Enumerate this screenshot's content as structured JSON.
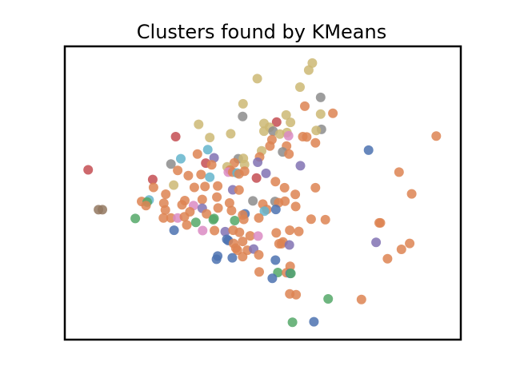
{
  "chart_data": {
    "type": "scatter",
    "title": "Clusters found by KMeans",
    "xlabel": "",
    "ylabel": "",
    "xlim": [
      0,
      1
    ],
    "ylim": [
      0,
      1
    ],
    "axes_visible": false,
    "grid": false,
    "legend": "none",
    "palette": {
      "blue": "#4c72b0",
      "orange": "#dd8452",
      "green": "#55a868",
      "red": "#c44e52",
      "purple": "#8172b3",
      "brown": "#937860",
      "pink": "#da8bc3",
      "gray": "#8c8c8c",
      "olive": "#ccb974",
      "cyan": "#64b5cd"
    },
    "points": [
      {
        "x": 0.625,
        "y": 0.943,
        "c": "olive"
      },
      {
        "x": 0.616,
        "y": 0.919,
        "c": "olive"
      },
      {
        "x": 0.594,
        "y": 0.861,
        "c": "olive"
      },
      {
        "x": 0.486,
        "y": 0.89,
        "c": "olive"
      },
      {
        "x": 0.45,
        "y": 0.804,
        "c": "olive"
      },
      {
        "x": 0.646,
        "y": 0.826,
        "c": "gray"
      },
      {
        "x": 0.606,
        "y": 0.796,
        "c": "orange"
      },
      {
        "x": 0.677,
        "y": 0.772,
        "c": "orange"
      },
      {
        "x": 0.646,
        "y": 0.769,
        "c": "olive"
      },
      {
        "x": 0.559,
        "y": 0.766,
        "c": "olive"
      },
      {
        "x": 0.535,
        "y": 0.742,
        "c": "red"
      },
      {
        "x": 0.57,
        "y": 0.741,
        "c": "olive"
      },
      {
        "x": 0.449,
        "y": 0.761,
        "c": "gray"
      },
      {
        "x": 0.503,
        "y": 0.737,
        "c": "olive"
      },
      {
        "x": 0.517,
        "y": 0.724,
        "c": "olive"
      },
      {
        "x": 0.648,
        "y": 0.717,
        "c": "gray"
      },
      {
        "x": 0.635,
        "y": 0.713,
        "c": "olive"
      },
      {
        "x": 0.503,
        "y": 0.711,
        "c": "olive"
      },
      {
        "x": 0.526,
        "y": 0.711,
        "c": "gray"
      },
      {
        "x": 0.543,
        "y": 0.701,
        "c": "olive"
      },
      {
        "x": 0.561,
        "y": 0.706,
        "c": "olive"
      },
      {
        "x": 0.565,
        "y": 0.695,
        "c": "pink"
      },
      {
        "x": 0.338,
        "y": 0.734,
        "c": "olive"
      },
      {
        "x": 0.366,
        "y": 0.689,
        "c": "olive"
      },
      {
        "x": 0.419,
        "y": 0.702,
        "c": "olive"
      },
      {
        "x": 0.28,
        "y": 0.692,
        "c": "red"
      },
      {
        "x": 0.601,
        "y": 0.692,
        "c": "orange"
      },
      {
        "x": 0.611,
        "y": 0.691,
        "c": "orange"
      },
      {
        "x": 0.633,
        "y": 0.671,
        "c": "orange"
      },
      {
        "x": 0.523,
        "y": 0.682,
        "c": "orange"
      },
      {
        "x": 0.56,
        "y": 0.66,
        "c": "orange"
      },
      {
        "x": 0.518,
        "y": 0.66,
        "c": "orange"
      },
      {
        "x": 0.55,
        "y": 0.64,
        "c": "gray"
      },
      {
        "x": 0.566,
        "y": 0.633,
        "c": "orange"
      },
      {
        "x": 0.497,
        "y": 0.644,
        "c": "olive"
      },
      {
        "x": 0.361,
        "y": 0.648,
        "c": "cyan"
      },
      {
        "x": 0.335,
        "y": 0.633,
        "c": "orange"
      },
      {
        "x": 0.293,
        "y": 0.617,
        "c": "cyan"
      },
      {
        "x": 0.377,
        "y": 0.62,
        "c": "purple"
      },
      {
        "x": 0.438,
        "y": 0.617,
        "c": "gray"
      },
      {
        "x": 0.451,
        "y": 0.618,
        "c": "olive"
      },
      {
        "x": 0.428,
        "y": 0.603,
        "c": "orange"
      },
      {
        "x": 0.492,
        "y": 0.623,
        "c": "orange"
      },
      {
        "x": 0.487,
        "y": 0.605,
        "c": "purple"
      },
      {
        "x": 0.268,
        "y": 0.599,
        "c": "gray"
      },
      {
        "x": 0.356,
        "y": 0.602,
        "c": "red"
      },
      {
        "x": 0.371,
        "y": 0.596,
        "c": "orange"
      },
      {
        "x": 0.41,
        "y": 0.589,
        "c": "olive"
      },
      {
        "x": 0.454,
        "y": 0.597,
        "c": "olive"
      },
      {
        "x": 0.417,
        "y": 0.578,
        "c": "orange"
      },
      {
        "x": 0.413,
        "y": 0.571,
        "c": "pink"
      },
      {
        "x": 0.424,
        "y": 0.571,
        "c": "orange"
      },
      {
        "x": 0.435,
        "y": 0.568,
        "c": "cyan"
      },
      {
        "x": 0.44,
        "y": 0.565,
        "c": "orange"
      },
      {
        "x": 0.454,
        "y": 0.574,
        "c": "orange"
      },
      {
        "x": 0.285,
        "y": 0.577,
        "c": "orange"
      },
      {
        "x": 0.312,
        "y": 0.559,
        "c": "orange"
      },
      {
        "x": 0.344,
        "y": 0.563,
        "c": "orange"
      },
      {
        "x": 0.366,
        "y": 0.554,
        "c": "cyan"
      },
      {
        "x": 0.508,
        "y": 0.567,
        "c": "purple"
      },
      {
        "x": 0.484,
        "y": 0.551,
        "c": "red"
      },
      {
        "x": 0.532,
        "y": 0.539,
        "c": "orange"
      },
      {
        "x": 0.555,
        "y": 0.518,
        "c": "orange"
      },
      {
        "x": 0.595,
        "y": 0.593,
        "c": "purple"
      },
      {
        "x": 0.059,
        "y": 0.579,
        "c": "red"
      },
      {
        "x": 0.222,
        "y": 0.546,
        "c": "red"
      },
      {
        "x": 0.275,
        "y": 0.527,
        "c": "olive"
      },
      {
        "x": 0.224,
        "y": 0.519,
        "c": "orange"
      },
      {
        "x": 0.327,
        "y": 0.519,
        "c": "orange"
      },
      {
        "x": 0.354,
        "y": 0.522,
        "c": "orange"
      },
      {
        "x": 0.386,
        "y": 0.524,
        "c": "orange"
      },
      {
        "x": 0.424,
        "y": 0.511,
        "c": "purple"
      },
      {
        "x": 0.44,
        "y": 0.51,
        "c": "orange"
      },
      {
        "x": 0.582,
        "y": 0.495,
        "c": "orange"
      },
      {
        "x": 0.633,
        "y": 0.518,
        "c": "orange"
      },
      {
        "x": 0.255,
        "y": 0.496,
        "c": "orange"
      },
      {
        "x": 0.213,
        "y": 0.476,
        "c": "cyan"
      },
      {
        "x": 0.194,
        "y": 0.471,
        "c": "orange"
      },
      {
        "x": 0.208,
        "y": 0.469,
        "c": "green"
      },
      {
        "x": 0.205,
        "y": 0.457,
        "c": "orange"
      },
      {
        "x": 0.25,
        "y": 0.465,
        "c": "orange"
      },
      {
        "x": 0.296,
        "y": 0.46,
        "c": "orange"
      },
      {
        "x": 0.303,
        "y": 0.474,
        "c": "orange"
      },
      {
        "x": 0.325,
        "y": 0.457,
        "c": "pink"
      },
      {
        "x": 0.347,
        "y": 0.478,
        "c": "orange"
      },
      {
        "x": 0.384,
        "y": 0.486,
        "c": "orange"
      },
      {
        "x": 0.416,
        "y": 0.466,
        "c": "orange"
      },
      {
        "x": 0.475,
        "y": 0.473,
        "c": "gray"
      },
      {
        "x": 0.5,
        "y": 0.462,
        "c": "orange"
      },
      {
        "x": 0.531,
        "y": 0.471,
        "c": "gray"
      },
      {
        "x": 0.54,
        "y": 0.467,
        "c": "orange"
      },
      {
        "x": 0.556,
        "y": 0.472,
        "c": "orange"
      },
      {
        "x": 0.583,
        "y": 0.454,
        "c": "orange"
      },
      {
        "x": 0.51,
        "y": 0.444,
        "c": "orange"
      },
      {
        "x": 0.533,
        "y": 0.444,
        "c": "blue"
      },
      {
        "x": 0.504,
        "y": 0.438,
        "c": "cyan"
      },
      {
        "x": 0.085,
        "y": 0.443,
        "c": "brown"
      },
      {
        "x": 0.095,
        "y": 0.443,
        "c": "brown"
      },
      {
        "x": 0.254,
        "y": 0.442,
        "c": "orange"
      },
      {
        "x": 0.347,
        "y": 0.448,
        "c": "purple"
      },
      {
        "x": 0.316,
        "y": 0.436,
        "c": "orange"
      },
      {
        "x": 0.358,
        "y": 0.429,
        "c": "orange"
      },
      {
        "x": 0.387,
        "y": 0.449,
        "c": "orange"
      },
      {
        "x": 0.421,
        "y": 0.44,
        "c": "orange"
      },
      {
        "x": 0.455,
        "y": 0.429,
        "c": "blue"
      },
      {
        "x": 0.449,
        "y": 0.425,
        "c": "orange"
      },
      {
        "x": 0.178,
        "y": 0.413,
        "c": "green"
      },
      {
        "x": 0.249,
        "y": 0.415,
        "c": "orange"
      },
      {
        "x": 0.268,
        "y": 0.415,
        "c": "orange"
      },
      {
        "x": 0.285,
        "y": 0.415,
        "c": "pink"
      },
      {
        "x": 0.302,
        "y": 0.419,
        "c": "orange"
      },
      {
        "x": 0.375,
        "y": 0.409,
        "c": "green"
      },
      {
        "x": 0.377,
        "y": 0.413,
        "c": "green"
      },
      {
        "x": 0.429,
        "y": 0.406,
        "c": "green"
      },
      {
        "x": 0.452,
        "y": 0.41,
        "c": "orange"
      },
      {
        "x": 0.49,
        "y": 0.415,
        "c": "orange"
      },
      {
        "x": 0.622,
        "y": 0.411,
        "c": "orange"
      },
      {
        "x": 0.658,
        "y": 0.409,
        "c": "orange"
      },
      {
        "x": 0.797,
        "y": 0.398,
        "c": "orange"
      },
      {
        "x": 0.308,
        "y": 0.391,
        "c": "orange"
      },
      {
        "x": 0.331,
        "y": 0.4,
        "c": "green"
      },
      {
        "x": 0.348,
        "y": 0.372,
        "c": "pink"
      },
      {
        "x": 0.276,
        "y": 0.373,
        "c": "blue"
      },
      {
        "x": 0.378,
        "y": 0.372,
        "c": "orange"
      },
      {
        "x": 0.405,
        "y": 0.368,
        "c": "purple"
      },
      {
        "x": 0.425,
        "y": 0.373,
        "c": "orange"
      },
      {
        "x": 0.441,
        "y": 0.366,
        "c": "orange"
      },
      {
        "x": 0.468,
        "y": 0.354,
        "c": "orange"
      },
      {
        "x": 0.488,
        "y": 0.353,
        "c": "pink"
      },
      {
        "x": 0.534,
        "y": 0.364,
        "c": "orange"
      },
      {
        "x": 0.568,
        "y": 0.373,
        "c": "orange"
      },
      {
        "x": 0.591,
        "y": 0.369,
        "c": "orange"
      },
      {
        "x": 0.551,
        "y": 0.333,
        "c": "orange"
      },
      {
        "x": 0.541,
        "y": 0.327,
        "c": "orange"
      },
      {
        "x": 0.547,
        "y": 0.327,
        "c": "orange"
      },
      {
        "x": 0.567,
        "y": 0.323,
        "c": "purple"
      },
      {
        "x": 0.409,
        "y": 0.342,
        "c": "blue"
      },
      {
        "x": 0.413,
        "y": 0.338,
        "c": "blue"
      },
      {
        "x": 0.426,
        "y": 0.328,
        "c": "orange"
      },
      {
        "x": 0.449,
        "y": 0.335,
        "c": "orange"
      },
      {
        "x": 0.432,
        "y": 0.312,
        "c": "orange"
      },
      {
        "x": 0.436,
        "y": 0.305,
        "c": "orange"
      },
      {
        "x": 0.461,
        "y": 0.305,
        "c": "orange"
      },
      {
        "x": 0.477,
        "y": 0.309,
        "c": "purple"
      },
      {
        "x": 0.49,
        "y": 0.289,
        "c": "orange"
      },
      {
        "x": 0.532,
        "y": 0.271,
        "c": "blue"
      },
      {
        "x": 0.569,
        "y": 0.25,
        "c": "orange"
      },
      {
        "x": 0.386,
        "y": 0.285,
        "c": "blue"
      },
      {
        "x": 0.383,
        "y": 0.274,
        "c": "blue"
      },
      {
        "x": 0.423,
        "y": 0.279,
        "c": "blue"
      },
      {
        "x": 0.449,
        "y": 0.283,
        "c": "orange"
      },
      {
        "x": 0.491,
        "y": 0.231,
        "c": "orange"
      },
      {
        "x": 0.538,
        "y": 0.229,
        "c": "green"
      },
      {
        "x": 0.524,
        "y": 0.209,
        "c": "blue"
      },
      {
        "x": 0.56,
        "y": 0.228,
        "c": "orange"
      },
      {
        "x": 0.569,
        "y": 0.226,
        "c": "blue"
      },
      {
        "x": 0.571,
        "y": 0.226,
        "c": "green"
      },
      {
        "x": 0.568,
        "y": 0.156,
        "c": "orange"
      },
      {
        "x": 0.584,
        "y": 0.153,
        "c": "orange"
      },
      {
        "x": 0.665,
        "y": 0.139,
        "c": "green"
      },
      {
        "x": 0.575,
        "y": 0.059,
        "c": "green"
      },
      {
        "x": 0.629,
        "y": 0.061,
        "c": "blue"
      },
      {
        "x": 0.749,
        "y": 0.137,
        "c": "orange"
      },
      {
        "x": 0.767,
        "y": 0.646,
        "c": "blue"
      },
      {
        "x": 0.844,
        "y": 0.571,
        "c": "orange"
      },
      {
        "x": 0.876,
        "y": 0.497,
        "c": "orange"
      },
      {
        "x": 0.794,
        "y": 0.398,
        "c": "orange"
      },
      {
        "x": 0.786,
        "y": 0.332,
        "c": "purple"
      },
      {
        "x": 0.815,
        "y": 0.276,
        "c": "orange"
      },
      {
        "x": 0.85,
        "y": 0.308,
        "c": "orange"
      },
      {
        "x": 0.871,
        "y": 0.328,
        "c": "orange"
      },
      {
        "x": 0.938,
        "y": 0.694,
        "c": "orange"
      }
    ]
  }
}
